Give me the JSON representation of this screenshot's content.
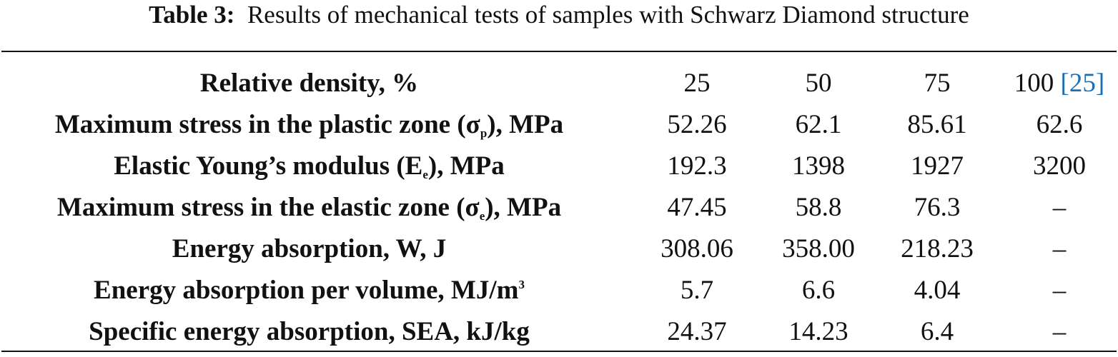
{
  "caption": {
    "label": "Table 3:",
    "text": "Results of mechanical tests of samples with Schwarz Diamond structure"
  },
  "header": {
    "label": "Relative density, %",
    "columns": [
      "25",
      "50",
      "75"
    ],
    "last_column": {
      "value": "100 ",
      "bracket_open": "[",
      "ref": "25",
      "bracket_close": "]"
    }
  },
  "rows": [
    {
      "label_pre": "Maximum stress in the plastic zone (σ",
      "label_sub": "p",
      "label_post": "), MPa",
      "values": [
        "52.26",
        "62.1",
        "85.61",
        "62.6"
      ]
    },
    {
      "label_pre": "Elastic Young’s modulus (E",
      "label_sub": "e",
      "label_post": "), MPa",
      "values": [
        "192.3",
        "1398",
        "1927",
        "3200"
      ]
    },
    {
      "label_pre": "Maximum stress in the elastic zone (σ",
      "label_sub": "e",
      "label_post": "), MPa",
      "values": [
        "47.45",
        "58.8",
        "76.3",
        "–"
      ]
    },
    {
      "label": "Energy absorption, W, J",
      "values": [
        "308.06",
        "358.00",
        "218.23",
        "–"
      ]
    },
    {
      "label_pre": "Energy absorption per volume, MJ/m",
      "label_sup": "3",
      "values": [
        "5.7",
        "6.6",
        "4.04",
        "–"
      ]
    },
    {
      "label": "Specific energy absorption, SEA, kJ/kg",
      "values": [
        "24.37",
        "14.23",
        "6.4",
        "–"
      ]
    }
  ]
}
